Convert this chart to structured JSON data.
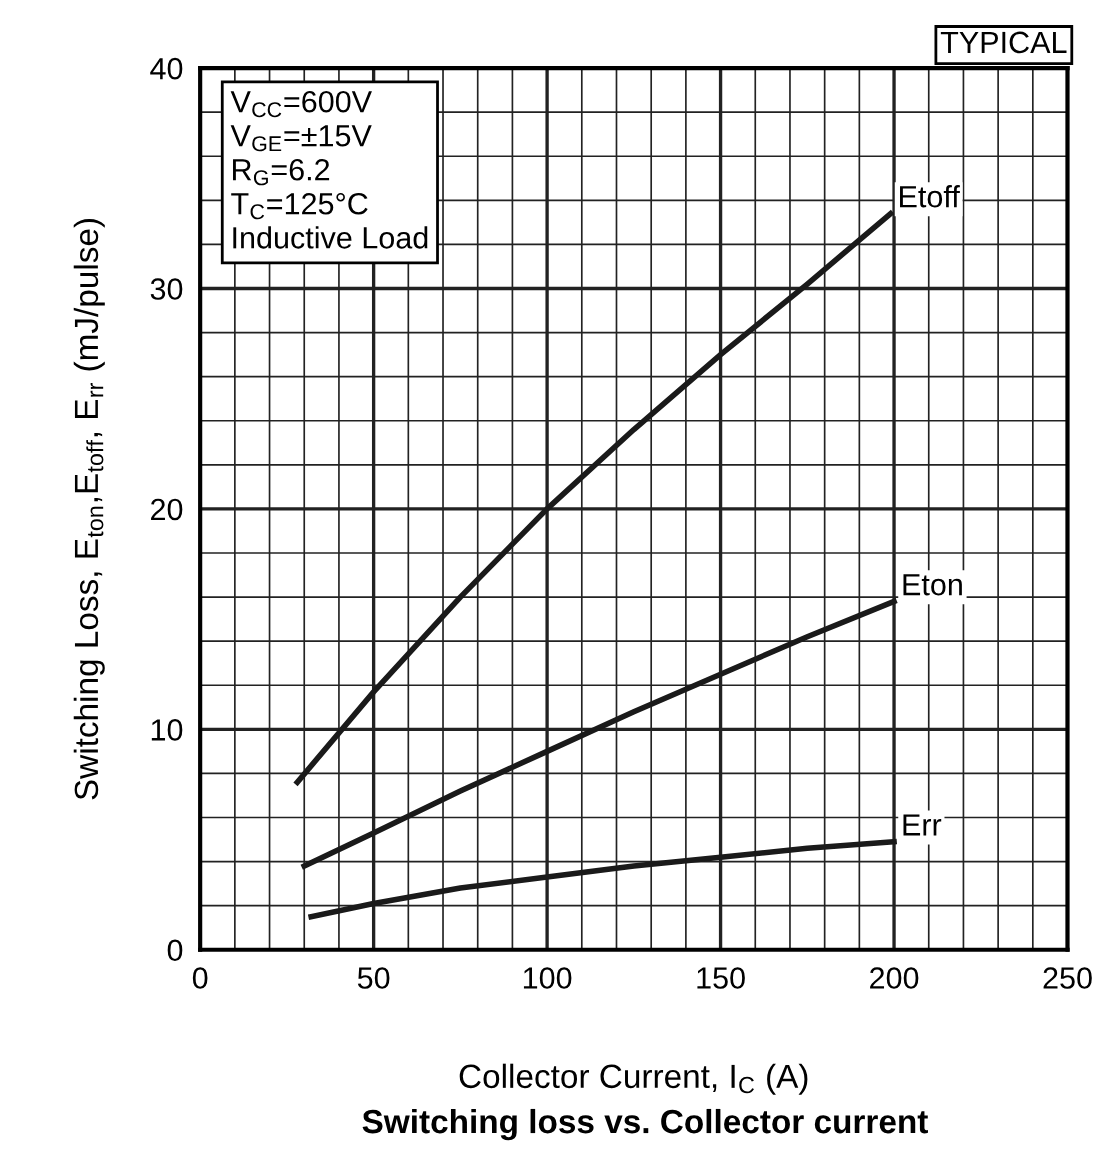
{
  "chart_data": {
    "type": "line",
    "title": "Switching loss vs. Collector current",
    "xlabel": "Collector Current, I$_{C}$ (A)",
    "ylabel": "Switching Loss, E$_{ton}$,E$_{toff}$, E$_{rr}$ (mJ/pulse)",
    "annotations": [
      "TYPICAL",
      "V$_{CC}$=600V",
      "V$_{GE}$=±15V",
      "R$_{G}$=6.2",
      "T$_{C}$=125°C",
      "Inductive Load"
    ],
    "series": [
      {
        "name": "Etoff",
        "color": "#1a1a1a",
        "x": [
          28,
          50,
          75,
          100,
          125,
          150,
          175,
          199
        ],
        "values": [
          7.6,
          11.7,
          16.0,
          20.0,
          23.6,
          27.0,
          30.2,
          33.4
        ]
      },
      {
        "name": "Eton",
        "color": "#1a1a1a",
        "x": [
          30,
          50,
          75,
          100,
          125,
          150,
          175,
          200
        ],
        "values": [
          3.8,
          5.3,
          7.2,
          9.0,
          10.8,
          12.5,
          14.2,
          15.8
        ]
      },
      {
        "name": "Err",
        "color": "#1a1a1a",
        "x": [
          32,
          50,
          75,
          100,
          125,
          150,
          175,
          200
        ],
        "values": [
          1.5,
          2.1,
          2.8,
          3.3,
          3.8,
          4.2,
          4.6,
          4.9
        ]
      }
    ],
    "xlim": [
      0,
      250
    ],
    "ylim": [
      0,
      40
    ],
    "xticks": [
      0,
      50,
      100,
      150,
      200,
      250
    ],
    "yticks": [
      0,
      10,
      20,
      30,
      40
    ],
    "grid": true,
    "legend": false,
    "marker": "none",
    "line_style": "solid"
  }
}
